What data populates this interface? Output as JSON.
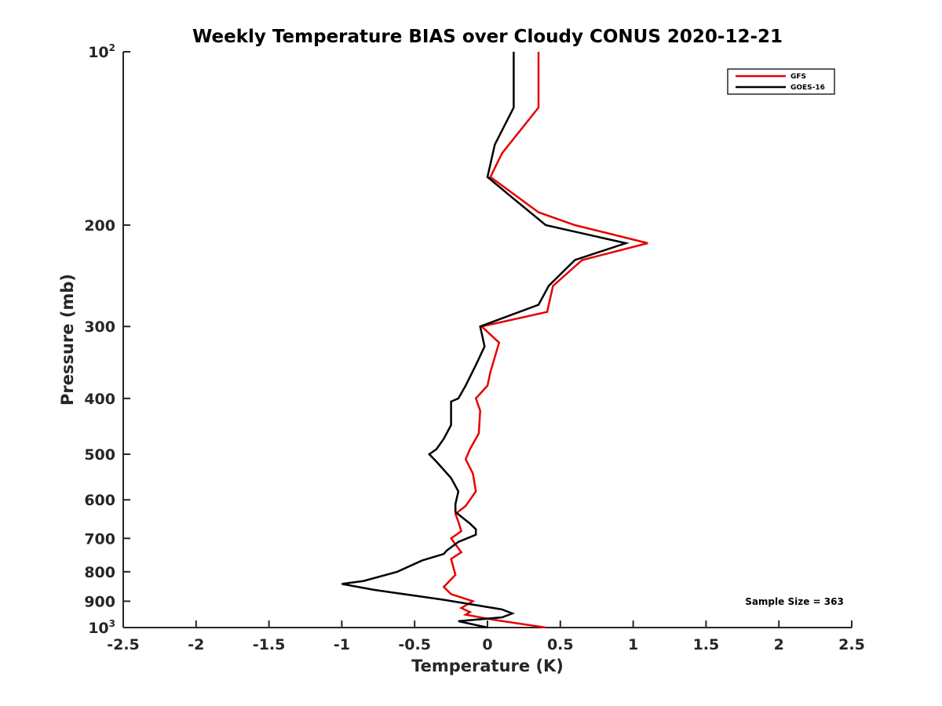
{
  "chart_data": {
    "type": "line",
    "title": "Weekly Temperature BIAS over Cloudy CONUS 2020-12-21",
    "xlabel": "Temperature (K)",
    "ylabel": "Pressure (mb)",
    "xlim": [
      -2.5,
      2.5
    ],
    "ylim": [
      100,
      1000
    ],
    "yscale": "log",
    "y_reversed": true,
    "grid": false,
    "x_ticks": [
      -2.5,
      -2,
      -1.5,
      -1,
      -0.5,
      0,
      0.5,
      1,
      1.5,
      2,
      2.5
    ],
    "x_tick_labels": [
      "-2.5",
      "-2",
      "-1.5",
      "-1",
      "-0.5",
      "0",
      "0.5",
      "1",
      "1.5",
      "2",
      "2.5"
    ],
    "y_ticks": [
      {
        "value": 100,
        "base": "10",
        "exp": "2",
        "label": ""
      },
      {
        "value": 200,
        "label": "200"
      },
      {
        "value": 300,
        "label": "300"
      },
      {
        "value": 400,
        "label": "400"
      },
      {
        "value": 500,
        "label": "500"
      },
      {
        "value": 600,
        "label": "600"
      },
      {
        "value": 700,
        "label": "700"
      },
      {
        "value": 800,
        "label": "800"
      },
      {
        "value": 900,
        "label": "900"
      },
      {
        "value": 1000,
        "base": "10",
        "exp": "3",
        "label": ""
      }
    ],
    "legend_position": "top-right",
    "annotation": "Sample Size = 363",
    "series": [
      {
        "name": "GFS",
        "color": "#e60000",
        "points": [
          [
            0.35,
            100
          ],
          [
            0.35,
            125
          ],
          [
            0.1,
            150
          ],
          [
            0.02,
            165
          ],
          [
            0.35,
            190
          ],
          [
            0.6,
            200
          ],
          [
            1.1,
            215
          ],
          [
            0.65,
            230
          ],
          [
            0.45,
            255
          ],
          [
            0.42,
            275
          ],
          [
            0.41,
            283
          ],
          [
            -0.04,
            300
          ],
          [
            0.08,
            320
          ],
          [
            0.02,
            360
          ],
          [
            0.0,
            380
          ],
          [
            -0.08,
            400
          ],
          [
            -0.05,
            420
          ],
          [
            -0.06,
            460
          ],
          [
            -0.12,
            490
          ],
          [
            -0.15,
            510
          ],
          [
            -0.1,
            540
          ],
          [
            -0.08,
            580
          ],
          [
            -0.15,
            615
          ],
          [
            -0.22,
            635
          ],
          [
            -0.2,
            655
          ],
          [
            -0.18,
            680
          ],
          [
            -0.25,
            700
          ],
          [
            -0.18,
            740
          ],
          [
            -0.25,
            760
          ],
          [
            -0.22,
            810
          ],
          [
            -0.3,
            850
          ],
          [
            -0.25,
            875
          ],
          [
            -0.1,
            900
          ],
          [
            -0.18,
            925
          ],
          [
            -0.12,
            940
          ],
          [
            -0.15,
            950
          ],
          [
            0.05,
            970
          ],
          [
            0.4,
            1000
          ]
        ]
      },
      {
        "name": "GOES-16",
        "color": "#000000",
        "points": [
          [
            0.18,
            100
          ],
          [
            0.18,
            125
          ],
          [
            0.05,
            145
          ],
          [
            0.0,
            165
          ],
          [
            0.18,
            180
          ],
          [
            0.4,
            200
          ],
          [
            0.95,
            215
          ],
          [
            0.6,
            230
          ],
          [
            0.42,
            255
          ],
          [
            0.35,
            275
          ],
          [
            -0.05,
            300
          ],
          [
            -0.02,
            325
          ],
          [
            -0.08,
            350
          ],
          [
            -0.15,
            380
          ],
          [
            -0.2,
            400
          ],
          [
            -0.25,
            405
          ],
          [
            -0.25,
            445
          ],
          [
            -0.3,
            470
          ],
          [
            -0.35,
            490
          ],
          [
            -0.4,
            500
          ],
          [
            -0.35,
            515
          ],
          [
            -0.25,
            550
          ],
          [
            -0.2,
            580
          ],
          [
            -0.22,
            610
          ],
          [
            -0.22,
            630
          ],
          [
            -0.12,
            660
          ],
          [
            -0.08,
            675
          ],
          [
            -0.08,
            690
          ],
          [
            -0.2,
            710
          ],
          [
            -0.28,
            735
          ],
          [
            -0.3,
            745
          ],
          [
            -0.45,
            765
          ],
          [
            -0.62,
            800
          ],
          [
            -0.85,
            830
          ],
          [
            -1.0,
            840
          ],
          [
            -0.78,
            860
          ],
          [
            -0.3,
            895
          ],
          [
            0.1,
            930
          ],
          [
            0.17,
            945
          ],
          [
            0.1,
            960
          ],
          [
            -0.2,
            975
          ],
          [
            0.0,
            1000
          ]
        ]
      }
    ]
  }
}
